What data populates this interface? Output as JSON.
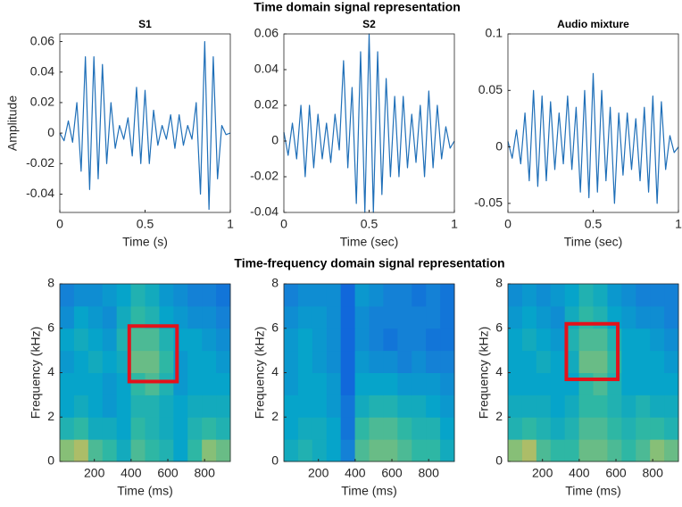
{
  "figure": {
    "title_top": "Time domain signal representation",
    "title_bottom": "Time-frequency domain signal representation"
  },
  "chart_data": [
    {
      "type": "line",
      "title": "S1",
      "xlabel": "Time (s)",
      "ylabel": "Amplitude",
      "x": [
        0,
        0.025,
        0.05,
        0.075,
        0.1,
        0.125,
        0.15,
        0.175,
        0.2,
        0.225,
        0.25,
        0.275,
        0.3,
        0.325,
        0.35,
        0.375,
        0.4,
        0.425,
        0.45,
        0.475,
        0.5,
        0.525,
        0.55,
        0.575,
        0.6,
        0.625,
        0.65,
        0.675,
        0.7,
        0.725,
        0.75,
        0.775,
        0.8,
        0.825,
        0.85,
        0.875,
        0.9,
        0.925,
        0.95,
        0.975,
        1
      ],
      "series": [
        {
          "color": "#1f6fb8",
          "values": [
            0,
            -0.005,
            0.008,
            -0.006,
            0.02,
            -0.025,
            0.05,
            -0.037,
            0.05,
            -0.03,
            0.045,
            -0.02,
            0.02,
            -0.01,
            0.005,
            -0.004,
            0.01,
            -0.015,
            0.03,
            -0.02,
            0.028,
            -0.02,
            0.015,
            -0.008,
            0.005,
            -0.004,
            0.012,
            -0.01,
            0.012,
            -0.008,
            0.005,
            -0.004,
            0.02,
            -0.04,
            0.06,
            -0.05,
            0.05,
            -0.03,
            0.005,
            -0.001,
            0
          ]
        }
      ],
      "xlim": [
        0,
        1
      ],
      "ylim": [
        -0.052,
        0.065
      ],
      "xticks": [
        0,
        0.5,
        1
      ],
      "yticks": [
        -0.04,
        -0.02,
        0,
        0.02,
        0.04,
        0.06
      ]
    },
    {
      "type": "line",
      "title": "S2",
      "xlabel": "Time (sec)",
      "x": [
        0,
        0.025,
        0.05,
        0.075,
        0.1,
        0.125,
        0.15,
        0.175,
        0.2,
        0.225,
        0.25,
        0.275,
        0.3,
        0.325,
        0.35,
        0.375,
        0.4,
        0.425,
        0.45,
        0.475,
        0.5,
        0.525,
        0.55,
        0.575,
        0.6,
        0.625,
        0.65,
        0.675,
        0.7,
        0.725,
        0.75,
        0.775,
        0.8,
        0.825,
        0.85,
        0.875,
        0.9,
        0.925,
        0.95,
        0.975,
        1
      ],
      "series": [
        {
          "color": "#1f6fb8",
          "values": [
            0.005,
            -0.008,
            0.01,
            -0.01,
            0.02,
            -0.02,
            0.02,
            -0.015,
            0.015,
            -0.01,
            0.01,
            -0.012,
            0.015,
            -0.005,
            0.045,
            -0.015,
            0.03,
            -0.035,
            0.05,
            -0.04,
            0.06,
            -0.04,
            0.05,
            -0.03,
            0.035,
            -0.02,
            0.025,
            -0.02,
            0.025,
            -0.015,
            0.015,
            -0.012,
            0.02,
            -0.02,
            0.028,
            -0.015,
            0.02,
            -0.01,
            0.008,
            -0.004,
            0
          ]
        }
      ],
      "xlim": [
        0,
        1
      ],
      "ylim": [
        -0.04,
        0.06
      ],
      "xticks": [
        0,
        0.5,
        1
      ],
      "yticks": [
        -0.04,
        -0.02,
        0,
        0.02,
        0.04,
        0.06
      ]
    },
    {
      "type": "line",
      "title": "Audio mixture",
      "xlabel": "Time (sec)",
      "x": [
        0,
        0.025,
        0.05,
        0.075,
        0.1,
        0.125,
        0.15,
        0.175,
        0.2,
        0.225,
        0.25,
        0.275,
        0.3,
        0.325,
        0.35,
        0.375,
        0.4,
        0.425,
        0.45,
        0.475,
        0.5,
        0.525,
        0.55,
        0.575,
        0.6,
        0.625,
        0.65,
        0.675,
        0.7,
        0.725,
        0.75,
        0.775,
        0.8,
        0.825,
        0.85,
        0.875,
        0.9,
        0.925,
        0.95,
        0.975,
        1
      ],
      "series": [
        {
          "color": "#1f6fb8",
          "values": [
            0.005,
            -0.01,
            0.015,
            -0.015,
            0.03,
            -0.03,
            0.05,
            -0.035,
            0.045,
            -0.03,
            0.04,
            -0.02,
            0.03,
            -0.015,
            0.045,
            -0.02,
            0.035,
            -0.04,
            0.05,
            -0.045,
            0.065,
            -0.04,
            0.05,
            -0.03,
            0.035,
            -0.05,
            0.03,
            -0.025,
            0.03,
            -0.02,
            0.025,
            -0.03,
            0.035,
            -0.04,
            0.045,
            -0.05,
            0.04,
            -0.02,
            0.01,
            -0.005,
            0
          ]
        }
      ],
      "xlim": [
        0,
        1
      ],
      "ylim": [
        -0.058,
        0.1
      ],
      "xticks": [
        0,
        0.5,
        1
      ],
      "yticks": [
        -0.05,
        0,
        0.05,
        0.1
      ]
    },
    {
      "type": "heatmap",
      "xlabel": "Time (ms)",
      "ylabel": "Frequency (kHz)",
      "colormap": "parula",
      "xlim": [
        12,
        940
      ],
      "ylim": [
        0,
        8
      ],
      "xticks": [
        200,
        400,
        600,
        800
      ],
      "yticks": [
        0,
        2,
        4,
        6,
        8
      ],
      "z": [
        [
          0.75,
          0.8,
          0.65,
          0.6,
          0.5,
          0.65,
          0.6,
          0.55,
          0.45,
          0.6,
          0.75,
          0.7
        ],
        [
          0.55,
          0.6,
          0.5,
          0.5,
          0.45,
          0.6,
          0.55,
          0.5,
          0.45,
          0.55,
          0.6,
          0.55
        ],
        [
          0.45,
          0.5,
          0.45,
          0.4,
          0.45,
          0.55,
          0.55,
          0.5,
          0.45,
          0.5,
          0.5,
          0.5
        ],
        [
          0.45,
          0.45,
          0.45,
          0.4,
          0.45,
          0.6,
          0.65,
          0.55,
          0.4,
          0.45,
          0.45,
          0.45
        ],
        [
          0.4,
          0.45,
          0.5,
          0.45,
          0.5,
          0.7,
          0.7,
          0.6,
          0.4,
          0.45,
          0.45,
          0.4
        ],
        [
          0.45,
          0.5,
          0.45,
          0.4,
          0.55,
          0.65,
          0.65,
          0.55,
          0.45,
          0.45,
          0.4,
          0.35
        ],
        [
          0.35,
          0.45,
          0.4,
          0.35,
          0.5,
          0.6,
          0.55,
          0.45,
          0.4,
          0.35,
          0.35,
          0.3
        ],
        [
          0.3,
          0.35,
          0.35,
          0.4,
          0.45,
          0.55,
          0.5,
          0.4,
          0.35,
          0.3,
          0.3,
          0.25
        ]
      ],
      "highlight": {
        "x": [
          390,
          650
        ],
        "y": [
          3.6,
          6.1
        ],
        "color": "#e3121b"
      }
    },
    {
      "type": "heatmap",
      "xlabel": "Time (ms)",
      "ylabel": "Frequency (kHz)",
      "colormap": "parula",
      "xlim": [
        12,
        940
      ],
      "ylim": [
        0,
        8
      ],
      "xticks": [
        200,
        400,
        600,
        800
      ],
      "yticks": [
        0,
        2,
        4,
        6,
        8
      ],
      "z": [
        [
          0.5,
          0.55,
          0.5,
          0.45,
          0.3,
          0.65,
          0.7,
          0.7,
          0.65,
          0.6,
          0.6,
          0.5
        ],
        [
          0.45,
          0.5,
          0.5,
          0.45,
          0.25,
          0.6,
          0.65,
          0.65,
          0.6,
          0.55,
          0.55,
          0.45
        ],
        [
          0.45,
          0.45,
          0.45,
          0.4,
          0.25,
          0.5,
          0.55,
          0.55,
          0.5,
          0.5,
          0.45,
          0.4
        ],
        [
          0.4,
          0.45,
          0.45,
          0.4,
          0.2,
          0.45,
          0.45,
          0.45,
          0.4,
          0.4,
          0.4,
          0.35
        ],
        [
          0.4,
          0.45,
          0.4,
          0.35,
          0.2,
          0.4,
          0.35,
          0.35,
          0.3,
          0.35,
          0.3,
          0.3
        ],
        [
          0.4,
          0.45,
          0.4,
          0.35,
          0.2,
          0.35,
          0.3,
          0.25,
          0.3,
          0.3,
          0.25,
          0.25
        ],
        [
          0.35,
          0.4,
          0.4,
          0.35,
          0.2,
          0.35,
          0.3,
          0.3,
          0.3,
          0.3,
          0.3,
          0.25
        ],
        [
          0.3,
          0.35,
          0.35,
          0.35,
          0.2,
          0.4,
          0.35,
          0.3,
          0.3,
          0.25,
          0.3,
          0.25
        ]
      ]
    },
    {
      "type": "heatmap",
      "xlabel": "Time (ms)",
      "ylabel": "Frequency (kHz)",
      "colormap": "parula",
      "xlim": [
        12,
        940
      ],
      "ylim": [
        0,
        8
      ],
      "xticks": [
        200,
        400,
        600,
        800
      ],
      "yticks": [
        0,
        2,
        4,
        6,
        8
      ],
      "z": [
        [
          0.75,
          0.8,
          0.65,
          0.6,
          0.6,
          0.7,
          0.7,
          0.65,
          0.6,
          0.65,
          0.75,
          0.7
        ],
        [
          0.55,
          0.6,
          0.55,
          0.5,
          0.55,
          0.65,
          0.65,
          0.6,
          0.55,
          0.6,
          0.6,
          0.55
        ],
        [
          0.5,
          0.5,
          0.5,
          0.45,
          0.5,
          0.6,
          0.6,
          0.55,
          0.5,
          0.55,
          0.5,
          0.5
        ],
        [
          0.45,
          0.45,
          0.45,
          0.45,
          0.45,
          0.6,
          0.65,
          0.55,
          0.45,
          0.45,
          0.45,
          0.45
        ],
        [
          0.45,
          0.45,
          0.5,
          0.45,
          0.5,
          0.7,
          0.7,
          0.6,
          0.45,
          0.45,
          0.45,
          0.4
        ],
        [
          0.45,
          0.5,
          0.45,
          0.4,
          0.55,
          0.65,
          0.65,
          0.55,
          0.45,
          0.45,
          0.4,
          0.35
        ],
        [
          0.4,
          0.45,
          0.4,
          0.35,
          0.5,
          0.6,
          0.55,
          0.45,
          0.4,
          0.35,
          0.35,
          0.3
        ],
        [
          0.35,
          0.4,
          0.35,
          0.4,
          0.45,
          0.55,
          0.5,
          0.4,
          0.35,
          0.3,
          0.3,
          0.3
        ]
      ],
      "highlight": {
        "x": [
          330,
          610
        ],
        "y": [
          3.7,
          6.2
        ],
        "color": "#e3121b"
      }
    }
  ]
}
